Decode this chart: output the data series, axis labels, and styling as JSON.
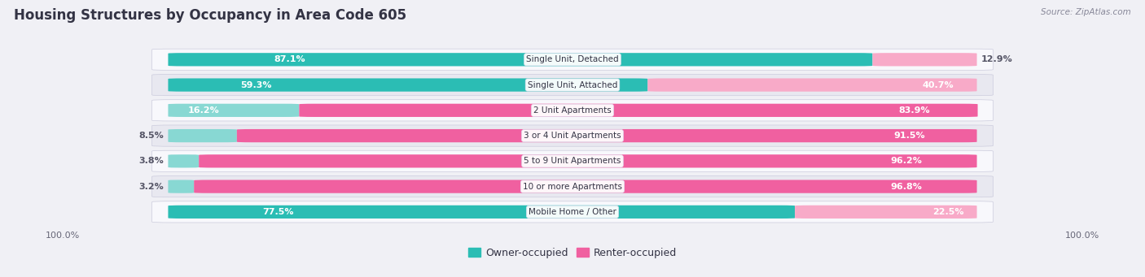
{
  "title": "Housing Structures by Occupancy in Area Code 605",
  "source": "Source: ZipAtlas.com",
  "categories": [
    "Single Unit, Detached",
    "Single Unit, Attached",
    "2 Unit Apartments",
    "3 or 4 Unit Apartments",
    "5 to 9 Unit Apartments",
    "10 or more Apartments",
    "Mobile Home / Other"
  ],
  "owner_pct": [
    87.1,
    59.3,
    16.2,
    8.5,
    3.8,
    3.2,
    77.5
  ],
  "renter_pct": [
    12.9,
    40.7,
    83.9,
    91.5,
    96.2,
    96.8,
    22.5
  ],
  "owner_color_strong": "#2bbdb4",
  "owner_color_light": "#88d8d3",
  "renter_color_strong": "#f060a0",
  "renter_color_light": "#f8aac8",
  "background_color": "#f0f0f5",
  "row_bg_even": "#e8e8f0",
  "row_bg_odd": "#f8f8fc",
  "title_fontsize": 12,
  "bar_height": 0.52,
  "legend_owner": "Owner-occupied",
  "legend_renter": "Renter-occupied",
  "xlim_left": -0.02,
  "xlim_right": 1.02
}
